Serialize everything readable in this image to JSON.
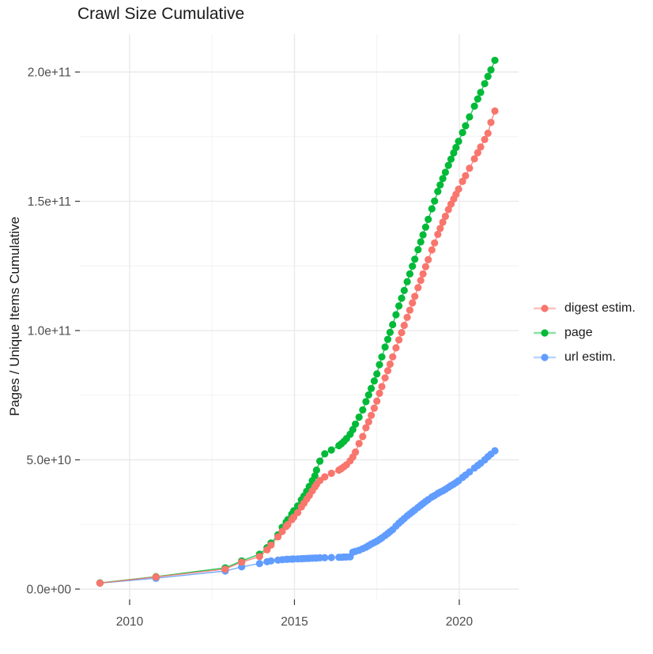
{
  "page": {
    "title": "Crawl Size Cumulative"
  },
  "style": {
    "background": "#ffffff",
    "grid_major": "#e8e8e8",
    "grid_minor": "#f1f1f1",
    "tick_color": "#333333",
    "axis_text_color": "#4d4d4d",
    "text_color": "#1a1a1a"
  },
  "legend": {
    "items": [
      {
        "label": "digest estim.",
        "color": "#F8766D"
      },
      {
        "label": "page",
        "color": "#00BA38"
      },
      {
        "label": "url estim.",
        "color": "#619CFF"
      }
    ]
  },
  "chart_data": {
    "type": "line",
    "title": "Crawl Size Cumulative",
    "xlabel": "",
    "ylabel": "Pages / Unique Items Cumulative",
    "legend_position": "right",
    "grid": true,
    "marker": "point",
    "axes": {
      "x_range": [
        2008.49,
        2021.8
      ],
      "y_range": [
        -4000000000.0,
        214700000000.0
      ],
      "x_ticks": [
        {
          "value": 2010,
          "label": "2010"
        },
        {
          "value": 2015,
          "label": "2015"
        },
        {
          "value": 2020,
          "label": "2020"
        }
      ],
      "y_ticks": [
        {
          "value": 0,
          "label": "0.0e+00"
        },
        {
          "value": 50000000000.0,
          "label": "5.0e+10"
        },
        {
          "value": 100000000000.0,
          "label": "1.0e+11"
        },
        {
          "value": 150000000000.0,
          "label": "1.5e+11"
        },
        {
          "value": 200000000000.0,
          "label": "2.0e+11"
        }
      ],
      "x_minor": [
        2012.5,
        2017.5
      ],
      "y_minor": [
        25000000000.0,
        75000000000.0,
        125000000000.0,
        175000000000.0
      ]
    },
    "draw_order": [
      "url estim.",
      "page",
      "digest estim."
    ],
    "series": [
      {
        "name": "digest estim.",
        "color": "#F8766D",
        "points": [
          [
            2009.1,
            2300000000.0
          ],
          [
            2010.8,
            4700000000.0
          ],
          [
            2012.9,
            7700000000.0
          ],
          [
            2013.4,
            10400000000.0
          ],
          [
            2013.94,
            12600000000.0
          ],
          [
            2014.17,
            15200000000.0
          ],
          [
            2014.29,
            17000000000.0
          ],
          [
            2014.5,
            20200000000.0
          ],
          [
            2014.63,
            22300000000.0
          ],
          [
            2014.75,
            24200000000.0
          ],
          [
            2014.8,
            25000000000.0
          ],
          [
            2014.92,
            26900000000.0
          ],
          [
            2014.98,
            27800000000.0
          ],
          [
            2015.1,
            29600000000.0
          ],
          [
            2015.21,
            31800000000.0
          ],
          [
            2015.29,
            33200000000.0
          ],
          [
            2015.37,
            34800000000.0
          ],
          [
            2015.45,
            36200000000.0
          ],
          [
            2015.54,
            38000000000.0
          ],
          [
            2015.62,
            39500000000.0
          ],
          [
            2015.67,
            40500000000.0
          ],
          [
            2015.77,
            42000000000.0
          ],
          [
            2015.92,
            43400000000.0
          ],
          [
            2016.12,
            44800000000.0
          ],
          [
            2016.35,
            46000000000.0
          ],
          [
            2016.42,
            46600000000.0
          ],
          [
            2016.5,
            47300000000.0
          ],
          [
            2016.58,
            48100000000.0
          ],
          [
            2016.69,
            49600000000.0
          ],
          [
            2016.77,
            51100000000.0
          ],
          [
            2016.85,
            53000000000.0
          ],
          [
            2016.96,
            56300000000.0
          ],
          [
            2017.07,
            59000000000.0
          ],
          [
            2017.17,
            62400000000.0
          ],
          [
            2017.25,
            64700000000.0
          ],
          [
            2017.33,
            67200000000.0
          ],
          [
            2017.42,
            70000000000.0
          ],
          [
            2017.5,
            72700000000.0
          ],
          [
            2017.58,
            75700000000.0
          ],
          [
            2017.65,
            78300000000.0
          ],
          [
            2017.75,
            81700000000.0
          ],
          [
            2017.83,
            84500000000.0
          ],
          [
            2017.9,
            87000000000.0
          ],
          [
            2017.98,
            89800000000.0
          ],
          [
            2018.08,
            93300000000.0
          ],
          [
            2018.17,
            96400000000.0
          ],
          [
            2018.25,
            99200000000.0
          ],
          [
            2018.33,
            102000000000.0
          ],
          [
            2018.42,
            105100000000.0
          ],
          [
            2018.5,
            107900000000.0
          ],
          [
            2018.58,
            110700000000.0
          ],
          [
            2018.65,
            113200000000.0
          ],
          [
            2018.75,
            116600000000.0
          ],
          [
            2018.83,
            119400000000.0
          ],
          [
            2018.9,
            121900000000.0
          ],
          [
            2018.98,
            124700000000.0
          ],
          [
            2019.06,
            127400000000.0
          ],
          [
            2019.17,
            131200000000.0
          ],
          [
            2019.25,
            133900000000.0
          ],
          [
            2019.35,
            137200000000.0
          ],
          [
            2019.42,
            139500000000.0
          ],
          [
            2019.5,
            141900000000.0
          ],
          [
            2019.58,
            144200000000.0
          ],
          [
            2019.67,
            146800000000.0
          ],
          [
            2019.75,
            148900000000.0
          ],
          [
            2019.83,
            150900000000.0
          ],
          [
            2019.9,
            152700000000.0
          ],
          [
            2019.98,
            154700000000.0
          ],
          [
            2020.1,
            157700000000.0
          ],
          [
            2020.19,
            159900000000.0
          ],
          [
            2020.31,
            162800000000.0
          ],
          [
            2020.46,
            166400000000.0
          ],
          [
            2020.56,
            168800000000.0
          ],
          [
            2020.65,
            171000000000.0
          ],
          [
            2020.77,
            173900000000.0
          ],
          [
            2020.87,
            176300000000.0
          ],
          [
            2020.96,
            180500000000.0
          ],
          [
            2021.08,
            184900000000.0
          ]
        ]
      },
      {
        "name": "page",
        "color": "#00BA38",
        "points": [
          [
            2009.1,
            2400000000.0
          ],
          [
            2010.8,
            4800000000.0
          ],
          [
            2012.9,
            8200000000.0
          ],
          [
            2013.4,
            10900000000.0
          ],
          [
            2013.94,
            13500000000.0
          ],
          [
            2014.17,
            16000000000.0
          ],
          [
            2014.29,
            17800000000.0
          ],
          [
            2014.5,
            21000000000.0
          ],
          [
            2014.63,
            23900000000.0
          ],
          [
            2014.75,
            25900000000.0
          ],
          [
            2014.8,
            26900000000.0
          ],
          [
            2014.92,
            29000000000.0
          ],
          [
            2014.98,
            30300000000.0
          ],
          [
            2015.1,
            32200000000.0
          ],
          [
            2015.21,
            34500000000.0
          ],
          [
            2015.29,
            36000000000.0
          ],
          [
            2015.37,
            37800000000.0
          ],
          [
            2015.45,
            39700000000.0
          ],
          [
            2015.54,
            41900000000.0
          ],
          [
            2015.62,
            43800000000.0
          ],
          [
            2015.67,
            46000000000.0
          ],
          [
            2015.77,
            49500000000.0
          ],
          [
            2015.92,
            52300000000.0
          ],
          [
            2016.12,
            53800000000.0
          ],
          [
            2016.35,
            55500000000.0
          ],
          [
            2016.42,
            56200000000.0
          ],
          [
            2016.5,
            57100000000.0
          ],
          [
            2016.58,
            58200000000.0
          ],
          [
            2016.69,
            59900000000.0
          ],
          [
            2016.77,
            61700000000.0
          ],
          [
            2016.85,
            63800000000.0
          ],
          [
            2016.96,
            66500000000.0
          ],
          [
            2017.07,
            69300000000.0
          ],
          [
            2017.17,
            72500000000.0
          ],
          [
            2017.25,
            75100000000.0
          ],
          [
            2017.33,
            77600000000.0
          ],
          [
            2017.42,
            80500000000.0
          ],
          [
            2017.5,
            83200000000.0
          ],
          [
            2017.58,
            86800000000.0
          ],
          [
            2017.65,
            89800000000.0
          ],
          [
            2017.75,
            93600000000.0
          ],
          [
            2017.83,
            96600000000.0
          ],
          [
            2017.9,
            99300000000.0
          ],
          [
            2017.98,
            102300000000.0
          ],
          [
            2018.08,
            106100000000.0
          ],
          [
            2018.17,
            109500000000.0
          ],
          [
            2018.25,
            112500000000.0
          ],
          [
            2018.33,
            115500000000.0
          ],
          [
            2018.42,
            118900000000.0
          ],
          [
            2018.5,
            121900000000.0
          ],
          [
            2018.58,
            124900000000.0
          ],
          [
            2018.65,
            127600000000.0
          ],
          [
            2018.75,
            131300000000.0
          ],
          [
            2018.83,
            134300000000.0
          ],
          [
            2018.9,
            137000000000.0
          ],
          [
            2018.98,
            140000000000.0
          ],
          [
            2019.06,
            143000000000.0
          ],
          [
            2019.17,
            147100000000.0
          ],
          [
            2019.25,
            150100000000.0
          ],
          [
            2019.35,
            153800000000.0
          ],
          [
            2019.42,
            156300000000.0
          ],
          [
            2019.5,
            158800000000.0
          ],
          [
            2019.58,
            161200000000.0
          ],
          [
            2019.67,
            163900000000.0
          ],
          [
            2019.75,
            166300000000.0
          ],
          [
            2019.83,
            168700000000.0
          ],
          [
            2019.9,
            170800000000.0
          ],
          [
            2019.98,
            173200000000.0
          ],
          [
            2020.1,
            176600000000.0
          ],
          [
            2020.19,
            179200000000.0
          ],
          [
            2020.31,
            182600000000.0
          ],
          [
            2020.46,
            186800000000.0
          ],
          [
            2020.56,
            189600000000.0
          ],
          [
            2020.65,
            192100000000.0
          ],
          [
            2020.77,
            195500000000.0
          ],
          [
            2020.87,
            198300000000.0
          ],
          [
            2020.96,
            200800000000.0
          ],
          [
            2021.08,
            204500000000.0
          ]
        ]
      },
      {
        "name": "url estim.",
        "color": "#619CFF",
        "points": [
          [
            2009.1,
            2300000000.0
          ],
          [
            2010.8,
            4200000000.0
          ],
          [
            2012.9,
            7000000000.0
          ],
          [
            2013.4,
            8600000000.0
          ],
          [
            2013.94,
            9900000000.0
          ],
          [
            2014.17,
            10600000000.0
          ],
          [
            2014.29,
            10900000000.0
          ],
          [
            2014.5,
            11200000000.0
          ],
          [
            2014.63,
            11400000000.0
          ],
          [
            2014.75,
            11500000000.0
          ],
          [
            2014.8,
            11550000000.0
          ],
          [
            2014.92,
            11600000000.0
          ],
          [
            2014.98,
            11650000000.0
          ],
          [
            2015.1,
            11700000000.0
          ],
          [
            2015.21,
            11750000000.0
          ],
          [
            2015.29,
            11800000000.0
          ],
          [
            2015.37,
            11850000000.0
          ],
          [
            2015.45,
            11900000000.0
          ],
          [
            2015.54,
            11950000000.0
          ],
          [
            2015.62,
            12000000000.0
          ],
          [
            2015.67,
            12000000000.0
          ],
          [
            2015.77,
            12100000000.0
          ],
          [
            2015.92,
            12150000000.0
          ],
          [
            2016.12,
            12200000000.0
          ],
          [
            2016.35,
            12300000000.0
          ],
          [
            2016.42,
            12300000000.0
          ],
          [
            2016.5,
            12400000000.0
          ],
          [
            2016.58,
            12400000000.0
          ],
          [
            2016.69,
            12500000000.0
          ],
          [
            2016.77,
            14300000000.0
          ],
          [
            2016.85,
            14600000000.0
          ],
          [
            2016.96,
            15000000000.0
          ],
          [
            2017.07,
            15600000000.0
          ],
          [
            2017.17,
            16200000000.0
          ],
          [
            2017.25,
            16800000000.0
          ],
          [
            2017.33,
            17400000000.0
          ],
          [
            2017.42,
            18000000000.0
          ],
          [
            2017.5,
            18500000000.0
          ],
          [
            2017.58,
            19200000000.0
          ],
          [
            2017.65,
            19800000000.0
          ],
          [
            2017.75,
            20700000000.0
          ],
          [
            2017.83,
            21500000000.0
          ],
          [
            2017.9,
            22200000000.0
          ],
          [
            2017.98,
            23000000000.0
          ],
          [
            2018.08,
            24400000000.0
          ],
          [
            2018.17,
            25500000000.0
          ],
          [
            2018.25,
            26400000000.0
          ],
          [
            2018.33,
            27300000000.0
          ],
          [
            2018.42,
            28300000000.0
          ],
          [
            2018.5,
            29100000000.0
          ],
          [
            2018.58,
            29900000000.0
          ],
          [
            2018.65,
            30600000000.0
          ],
          [
            2018.75,
            31600000000.0
          ],
          [
            2018.83,
            32400000000.0
          ],
          [
            2018.9,
            33100000000.0
          ],
          [
            2018.98,
            33900000000.0
          ],
          [
            2019.06,
            34600000000.0
          ],
          [
            2019.17,
            35600000000.0
          ],
          [
            2019.25,
            36200000000.0
          ],
          [
            2019.35,
            37000000000.0
          ],
          [
            2019.42,
            37500000000.0
          ],
          [
            2019.5,
            38000000000.0
          ],
          [
            2019.58,
            38600000000.0
          ],
          [
            2019.67,
            39300000000.0
          ],
          [
            2019.75,
            40000000000.0
          ],
          [
            2019.83,
            40600000000.0
          ],
          [
            2019.9,
            41200000000.0
          ],
          [
            2019.98,
            41900000000.0
          ],
          [
            2020.1,
            43200000000.0
          ],
          [
            2020.19,
            44100000000.0
          ],
          [
            2020.31,
            45300000000.0
          ],
          [
            2020.46,
            46800000000.0
          ],
          [
            2020.56,
            47800000000.0
          ],
          [
            2020.65,
            48700000000.0
          ],
          [
            2020.77,
            50000000000.0
          ],
          [
            2020.87,
            51200000000.0
          ],
          [
            2020.96,
            52200000000.0
          ],
          [
            2021.08,
            53500000000.0
          ]
        ]
      }
    ]
  }
}
